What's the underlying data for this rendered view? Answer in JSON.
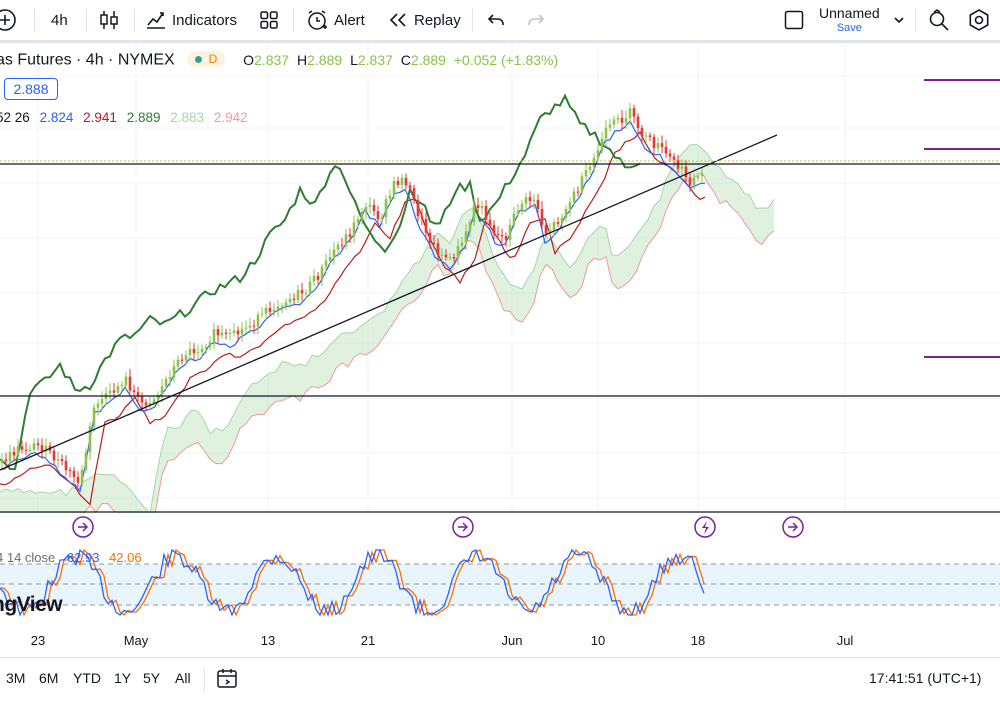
{
  "toolbar": {
    "interval": "4h",
    "indicators_label": "Indicators",
    "alert_label": "Alert",
    "replay_label": "Replay",
    "layout_name": "Unnamed",
    "save_label": "Save"
  },
  "legend": {
    "symbol": "as Futures · 4h · NYMEX",
    "badge_letter": "D",
    "o_label": "O",
    "o_value": "2.837",
    "h_label": "H",
    "h_value": "2.889",
    "l_label": "L",
    "l_value": "2.837",
    "c_label": "C",
    "c_value": "2.889",
    "change": "+0.052 (+1.83%)",
    "price_badge": "2.888",
    "ichimoku_params": "52 26",
    "ichimoku_values": [
      "2.824",
      "2.941",
      "2.889",
      "2.883",
      "2.942"
    ]
  },
  "indicator": {
    "label": "4 14 close",
    "k_value": "62.93",
    "d_value": "42.06",
    "watermark": "ngView"
  },
  "xaxis": {
    "labels": [
      "23",
      "May",
      "13",
      "21",
      "Jun",
      "10",
      "18",
      "Jul"
    ]
  },
  "bottom": {
    "ranges": [
      "3M",
      "6M",
      "YTD",
      "1Y",
      "5Y",
      "All"
    ],
    "clock": "17:41:51 (UTC+1)"
  },
  "colors": {
    "up": "#8bc34a",
    "down": "#e53935",
    "conversion": "#2962ff",
    "base": "#b71c1c",
    "lagging": "#2e7d32",
    "span_a": "#a5d6a7",
    "span_b": "#ef9a9a",
    "k_line": "#2962ff",
    "d_line": "#ff6d00",
    "event": "#7b1fa2",
    "accent": "#2962ff"
  }
}
